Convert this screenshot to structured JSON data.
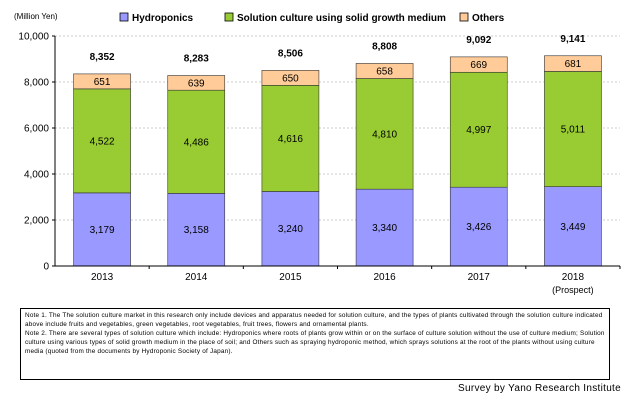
{
  "chart_data": {
    "type": "bar",
    "stacked": true,
    "unit_label": "(Million Yen)",
    "categories": [
      "2013",
      "2014",
      "2015",
      "2016",
      "2017",
      "2018"
    ],
    "category_sublabels": [
      "",
      "",
      "",
      "",
      "",
      "(Prospect)"
    ],
    "series": [
      {
        "name": "Hydroponics",
        "color": "#9999ff",
        "values": [
          3179,
          3158,
          3240,
          3340,
          3426,
          3449
        ]
      },
      {
        "name": "Solution culture using solid growth medium",
        "color": "#99cc33",
        "values": [
          4522,
          4486,
          4616,
          4810,
          4997,
          5011
        ]
      },
      {
        "name": "Others",
        "color": "#ffcc99",
        "values": [
          651,
          639,
          650,
          658,
          669,
          681
        ]
      }
    ],
    "totals": [
      8352,
      8283,
      8506,
      8808,
      9092,
      9141
    ],
    "ylim": [
      0,
      10000
    ],
    "yticks": [
      0,
      2000,
      4000,
      6000,
      8000,
      10000
    ],
    "legend_position": "top"
  },
  "notes": {
    "note1": "Note 1. The The solution culture market in this research only include devices and apparatus needed for solution culture, and the types of plants cultivated through the solution culture indicated above include fruits and vegetables, green vegetables, root vegetables, fruit trees, flowers and ornamental plants.",
    "note2": "Note 2. There are several types of solution culture which include: Hydroponics where roots of plants grow within or on the surface of culture solution without the use of culture medium; Solution culture using various types of solid growth medium in the place of soil; and Others such as spraying hydroponic method, which sprays solutions at the root of the plants without using culture media (quoted from the documents by Hydroponic Society of Japan)."
  },
  "source": "Survey by Yano Research Institute"
}
